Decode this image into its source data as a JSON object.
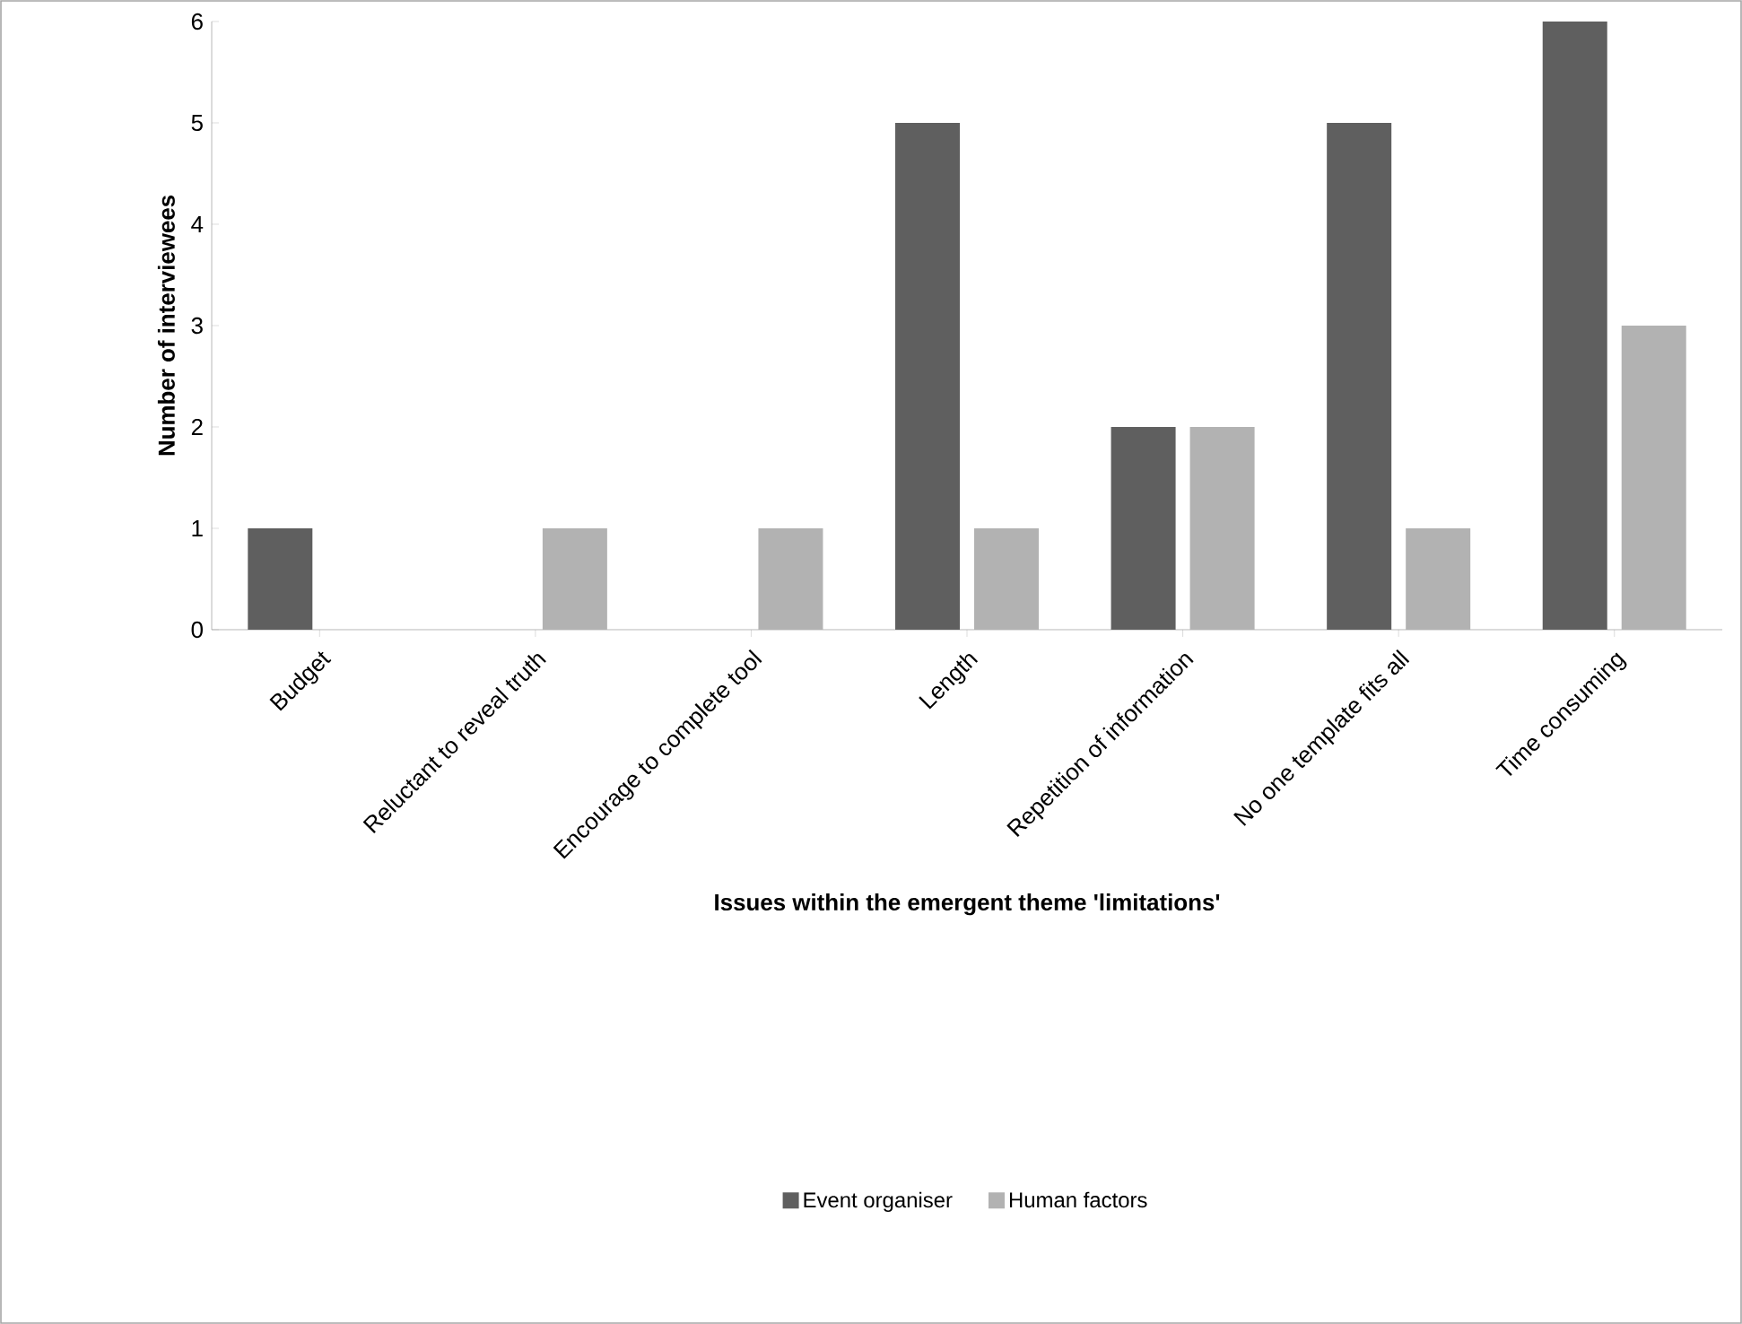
{
  "chart_data": {
    "type": "bar",
    "xlabel": "Issues within the emergent theme 'limitations'",
    "ylabel": "Number of interviewees",
    "categories": [
      "Budget",
      "Reluctant to reveal truth",
      "Encourage to complete tool",
      "Length",
      "Repetition of information",
      "No one template fits all",
      "Time consuming"
    ],
    "series": [
      {
        "name": "Event organiser",
        "color": "#5f5f5f",
        "values": [
          1,
          0,
          0,
          5,
          2,
          5,
          6
        ]
      },
      {
        "name": "Human factors",
        "color": "#b2b2b2",
        "values": [
          0,
          1,
          1,
          1,
          2,
          1,
          3
        ]
      }
    ],
    "ylim": [
      0,
      6
    ],
    "yticks": [
      0,
      1,
      2,
      3,
      4,
      5,
      6
    ],
    "grid": false,
    "legend": "bottom"
  }
}
